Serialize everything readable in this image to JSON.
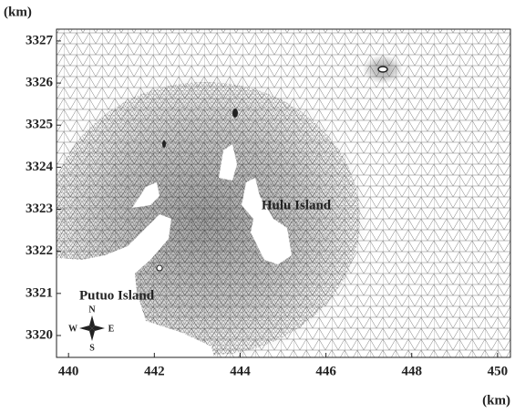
{
  "chart_data": {
    "type": "mesh",
    "y_unit": "(km)",
    "x_unit": "(km)",
    "xlim": [
      439.72,
      450.3
    ],
    "ylim": [
      3319.48,
      3327.28
    ],
    "xticks": [
      440,
      442,
      444,
      446,
      448,
      450
    ],
    "yticks": [
      3320,
      3321,
      3322,
      3323,
      3324,
      3325,
      3326,
      3327
    ],
    "annotations": [
      "Hulu Island",
      "Putuo Island"
    ],
    "compass": {
      "north": "N",
      "south": "S",
      "east": "E",
      "west": "W"
    }
  }
}
